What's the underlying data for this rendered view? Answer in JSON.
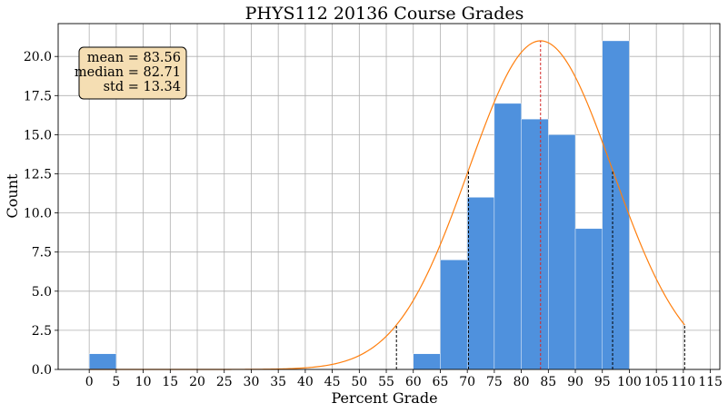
{
  "chart_data": {
    "type": "bar",
    "title": "PHYS112 20136 Course Grades",
    "xlabel": "Percent Grade",
    "ylabel": "Count",
    "xlim": [
      -5.75,
      116.75
    ],
    "ylim": [
      0,
      22.1
    ],
    "grid": true,
    "xticks": [
      0,
      5,
      10,
      15,
      20,
      25,
      30,
      35,
      40,
      45,
      50,
      55,
      60,
      65,
      70,
      75,
      80,
      85,
      90,
      95,
      100,
      105,
      110,
      115
    ],
    "yticks": [
      0.0,
      2.5,
      5.0,
      7.5,
      10.0,
      12.5,
      15.0,
      17.5,
      20.0
    ],
    "bins": [
      {
        "x0": 0,
        "x1": 5,
        "count": 1
      },
      {
        "x0": 60,
        "x1": 65,
        "count": 1
      },
      {
        "x0": 65,
        "x1": 70,
        "count": 7
      },
      {
        "x0": 70,
        "x1": 75,
        "count": 11
      },
      {
        "x0": 75,
        "x1": 80,
        "count": 17
      },
      {
        "x0": 80,
        "x1": 85,
        "count": 16
      },
      {
        "x0": 85,
        "x1": 90,
        "count": 15
      },
      {
        "x0": 90,
        "x1": 95,
        "count": 9
      },
      {
        "x0": 95,
        "x1": 100,
        "count": 21
      }
    ],
    "fit_curve": {
      "type": "gaussian",
      "mean": 83.56,
      "std": 13.34,
      "peak": 21.0,
      "x_range": [
        0,
        110.24
      ]
    },
    "mean_line": 83.56,
    "std_lines": [
      56.88,
      70.22,
      96.9,
      110.24
    ],
    "stats_box": {
      "lines": [
        "mean = 83.56",
        "median = 82.71",
        "std = 13.34"
      ],
      "placement": "top-left"
    },
    "colors": {
      "bar": "#4f91dd",
      "curve": "#ff7f0e",
      "mean_line": "#d62728",
      "std_line": "#000000",
      "box_fill": "#f5deb3",
      "grid": "#b0b0b0"
    }
  }
}
